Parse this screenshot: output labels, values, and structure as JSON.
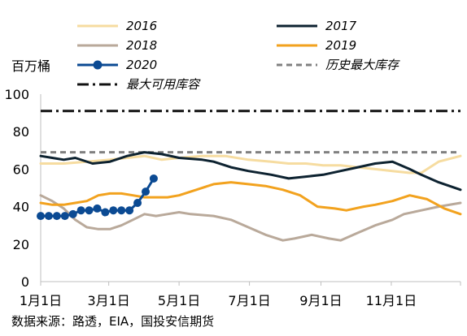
{
  "chart_data": {
    "type": "line",
    "unit_label": "百万桶",
    "source": "数据来源：路透，EIA，国投安信期货",
    "xlim": [
      "1月1日",
      "12月31日"
    ],
    "ylim": [
      0,
      100
    ],
    "y_ticks": [
      0,
      20,
      40,
      60,
      80,
      100
    ],
    "x_ticks": [
      {
        "label": "1月1日",
        "day": 0
      },
      {
        "label": "3月1日",
        "day": 59
      },
      {
        "label": "5月1日",
        "day": 120
      },
      {
        "label": "7月1日",
        "day": 181
      },
      {
        "label": "9月1日",
        "day": 243
      },
      {
        "label": "11月1日",
        "day": 304
      }
    ],
    "grid": false,
    "legend": "top",
    "series": [
      {
        "name": "2016",
        "color": "#f6dca0",
        "style": "solid",
        "points": [
          [
            0,
            63
          ],
          [
            20,
            63
          ],
          [
            40,
            64
          ],
          [
            60,
            65
          ],
          [
            75,
            66
          ],
          [
            90,
            67
          ],
          [
            105,
            65
          ],
          [
            120,
            66
          ],
          [
            140,
            67
          ],
          [
            160,
            67
          ],
          [
            180,
            65
          ],
          [
            200,
            64
          ],
          [
            215,
            63
          ],
          [
            230,
            63
          ],
          [
            245,
            62
          ],
          [
            260,
            62
          ],
          [
            275,
            61
          ],
          [
            290,
            60
          ],
          [
            305,
            59
          ],
          [
            320,
            58
          ],
          [
            330,
            58
          ],
          [
            345,
            64
          ],
          [
            364,
            67
          ]
        ]
      },
      {
        "name": "2017",
        "color": "#0d2230",
        "style": "solid",
        "points": [
          [
            0,
            67
          ],
          [
            10,
            66
          ],
          [
            20,
            65
          ],
          [
            30,
            66
          ],
          [
            45,
            63
          ],
          [
            60,
            64
          ],
          [
            75,
            67
          ],
          [
            90,
            69
          ],
          [
            105,
            68
          ],
          [
            120,
            66
          ],
          [
            140,
            65
          ],
          [
            150,
            64
          ],
          [
            165,
            61
          ],
          [
            180,
            59
          ],
          [
            200,
            57
          ],
          [
            215,
            55
          ],
          [
            230,
            56
          ],
          [
            245,
            57
          ],
          [
            260,
            59
          ],
          [
            275,
            61
          ],
          [
            290,
            63
          ],
          [
            305,
            64
          ],
          [
            320,
            60
          ],
          [
            330,
            57
          ],
          [
            345,
            53
          ],
          [
            364,
            49
          ]
        ]
      },
      {
        "name": "2018",
        "color": "#b9a99a",
        "style": "solid",
        "points": [
          [
            0,
            46
          ],
          [
            10,
            43
          ],
          [
            20,
            39
          ],
          [
            30,
            33
          ],
          [
            40,
            29
          ],
          [
            50,
            28
          ],
          [
            60,
            28
          ],
          [
            70,
            30
          ],
          [
            80,
            33
          ],
          [
            90,
            36
          ],
          [
            100,
            35
          ],
          [
            110,
            36
          ],
          [
            120,
            37
          ],
          [
            130,
            36
          ],
          [
            150,
            35
          ],
          [
            165,
            33
          ],
          [
            180,
            29
          ],
          [
            195,
            25
          ],
          [
            210,
            22
          ],
          [
            220,
            23
          ],
          [
            235,
            25
          ],
          [
            250,
            23
          ],
          [
            260,
            22
          ],
          [
            275,
            26
          ],
          [
            290,
            30
          ],
          [
            305,
            33
          ],
          [
            315,
            36
          ],
          [
            330,
            38
          ],
          [
            345,
            40
          ],
          [
            364,
            42
          ]
        ]
      },
      {
        "name": "2019",
        "color": "#f2a21e",
        "style": "solid",
        "points": [
          [
            0,
            42
          ],
          [
            10,
            41
          ],
          [
            20,
            41
          ],
          [
            30,
            42
          ],
          [
            40,
            43
          ],
          [
            50,
            46
          ],
          [
            60,
            47
          ],
          [
            70,
            47
          ],
          [
            80,
            46
          ],
          [
            90,
            45
          ],
          [
            100,
            45
          ],
          [
            110,
            45
          ],
          [
            120,
            46
          ],
          [
            135,
            49
          ],
          [
            150,
            52
          ],
          [
            165,
            53
          ],
          [
            180,
            52
          ],
          [
            195,
            51
          ],
          [
            210,
            49
          ],
          [
            225,
            46
          ],
          [
            240,
            40
          ],
          [
            255,
            39
          ],
          [
            265,
            38
          ],
          [
            280,
            40
          ],
          [
            290,
            41
          ],
          [
            305,
            43
          ],
          [
            320,
            46
          ],
          [
            335,
            44
          ],
          [
            350,
            39
          ],
          [
            364,
            36
          ]
        ]
      },
      {
        "name": "2020",
        "color": "#0b4a93",
        "style": "markers",
        "points": [
          [
            0,
            35
          ],
          [
            7,
            35
          ],
          [
            14,
            35
          ],
          [
            21,
            35
          ],
          [
            28,
            36
          ],
          [
            35,
            38
          ],
          [
            42,
            38
          ],
          [
            49,
            39
          ],
          [
            56,
            37
          ],
          [
            63,
            38
          ],
          [
            70,
            38
          ],
          [
            77,
            38
          ],
          [
            84,
            42
          ],
          [
            91,
            48
          ],
          [
            98,
            55
          ]
        ]
      },
      {
        "name": "历史最大库存",
        "color": "#808080",
        "style": "dashed",
        "points": [
          [
            0,
            69
          ],
          [
            364,
            69
          ]
        ]
      },
      {
        "name": "最大可用库容",
        "color": "#111111",
        "style": "dashdot",
        "points": [
          [
            0,
            91
          ],
          [
            364,
            91
          ]
        ]
      }
    ]
  }
}
